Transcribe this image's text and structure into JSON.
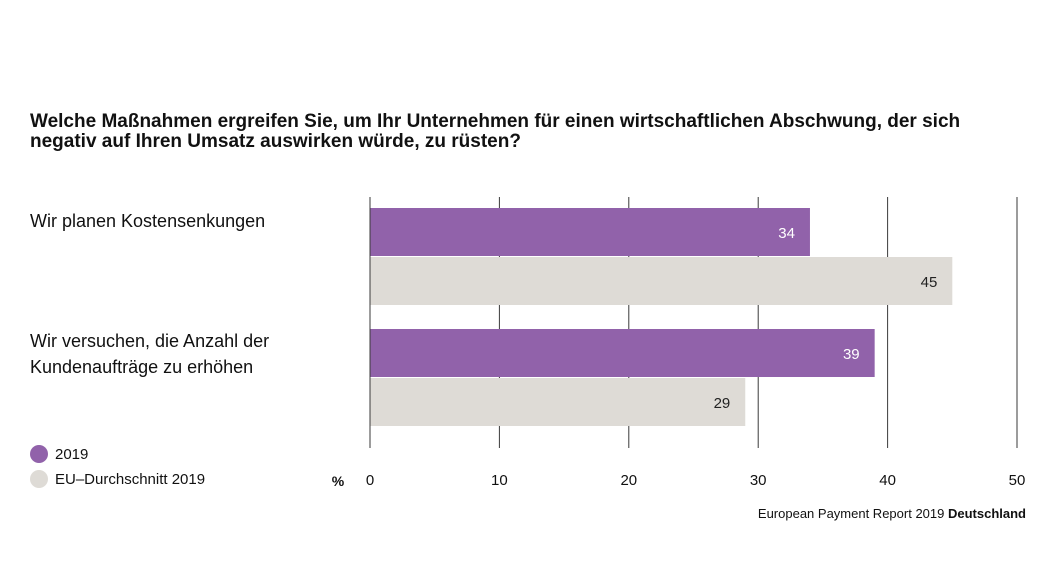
{
  "chart_data": {
    "type": "bar",
    "orientation": "horizontal",
    "title": "Welche Maßnahmen ergreifen Sie, um Ihr Unternehmen für einen wirtschaftlichen Abschwung, der sich negativ auf Ihren Umsatz auswirken würde, zu rüsten?",
    "categories": [
      "Wir planen Kostensenkungen",
      "Wir versuchen, die Anzahl der\nKundenaufträge zu erhöhen"
    ],
    "series": [
      {
        "name": "2019",
        "values": [
          34,
          39
        ],
        "color": "#9162aa",
        "label_color": "#ffffff"
      },
      {
        "name": "EU–Durchschnitt 2019",
        "values": [
          45,
          29
        ],
        "color": "#dedbd6",
        "label_color": "#222222"
      }
    ],
    "xlabel": "%",
    "xlim": [
      0,
      50
    ],
    "xticks": [
      0,
      10,
      20,
      30,
      40,
      50
    ],
    "grid": true,
    "legend_position": "bottom-left"
  },
  "footer": {
    "source": "European Payment Report 2019 ",
    "country": "Deutschland"
  }
}
